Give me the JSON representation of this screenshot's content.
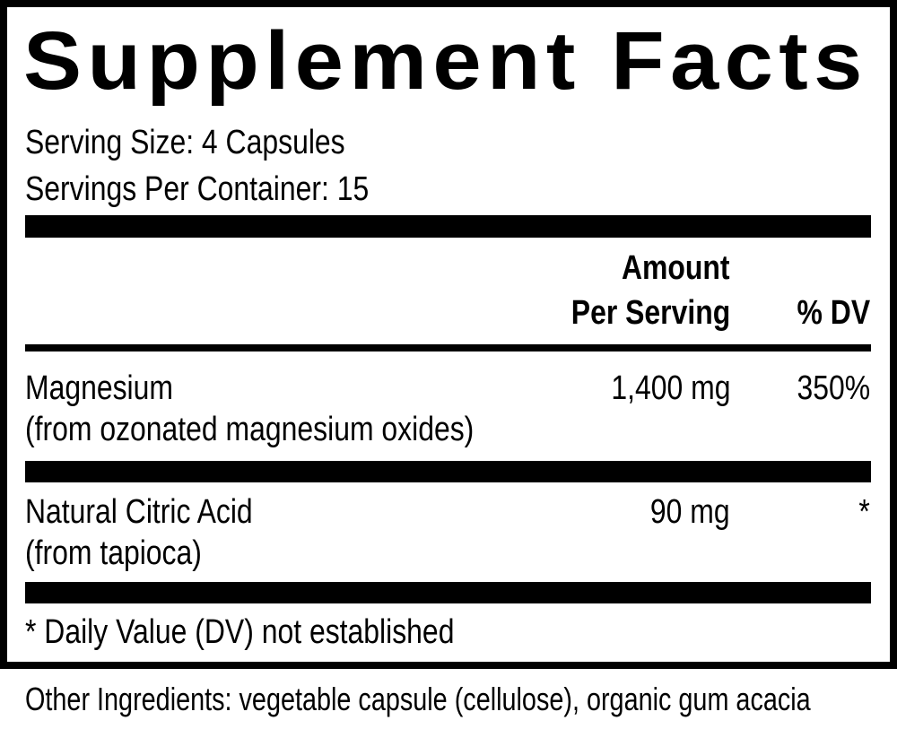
{
  "title": "Supplement Facts",
  "serving_size": "Serving Size: 4 Capsules",
  "servings_per_container": "Servings Per Container: 15",
  "header": {
    "amount_line1": "Amount",
    "amount_line2": "Per Serving",
    "dv": "% DV"
  },
  "rows": [
    {
      "name": "Magnesium",
      "source": "(from ozonated magnesium oxides)",
      "amount": "1,400 mg",
      "dv": "350%"
    },
    {
      "name": "Natural Citric Acid",
      "source": "(from tapioca)",
      "amount": "90 mg",
      "dv": "*"
    }
  ],
  "footnote": "* Daily Value (DV) not established",
  "other_ingredients": "Other Ingredients: vegetable capsule (cellulose), organic gum acacia"
}
